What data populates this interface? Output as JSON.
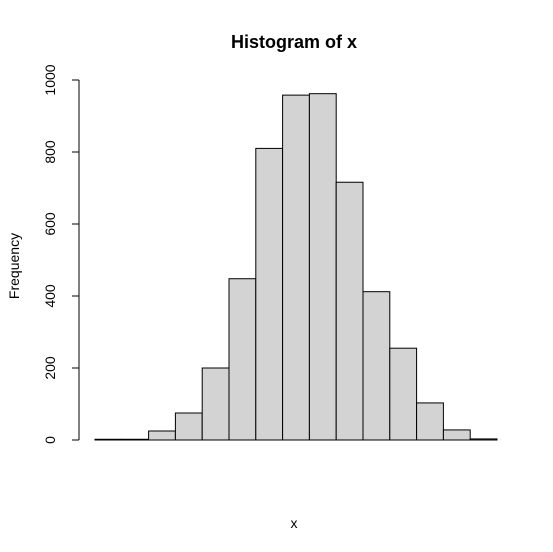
{
  "chart_data": {
    "type": "bar",
    "title": "Histogram of x",
    "xlabel": "x",
    "ylabel": "Frequency",
    "ylim": [
      0,
      1000
    ],
    "yticks": [
      0,
      200,
      400,
      600,
      800,
      1000
    ],
    "xticks_shown": false,
    "grid": false,
    "legend": "none",
    "bar_fill": "#d3d3d3",
    "bar_stroke": "#000000",
    "bins": [
      {
        "x0": 0,
        "x1": 1,
        "count": 2
      },
      {
        "x0": 1,
        "x1": 2,
        "count": 2
      },
      {
        "x0": 2,
        "x1": 3,
        "count": 25
      },
      {
        "x0": 3,
        "x1": 4,
        "count": 75
      },
      {
        "x0": 4,
        "x1": 5,
        "count": 200
      },
      {
        "x0": 5,
        "x1": 6,
        "count": 448
      },
      {
        "x0": 6,
        "x1": 7,
        "count": 810
      },
      {
        "x0": 7,
        "x1": 8,
        "count": 958
      },
      {
        "x0": 8,
        "x1": 9,
        "count": 962
      },
      {
        "x0": 9,
        "x1": 10,
        "count": 716
      },
      {
        "x0": 10,
        "x1": 11,
        "count": 412
      },
      {
        "x0": 11,
        "x1": 12,
        "count": 255
      },
      {
        "x0": 12,
        "x1": 13,
        "count": 103
      },
      {
        "x0": 13,
        "x1": 14,
        "count": 28
      },
      {
        "x0": 14,
        "x1": 15,
        "count": 3
      }
    ]
  }
}
